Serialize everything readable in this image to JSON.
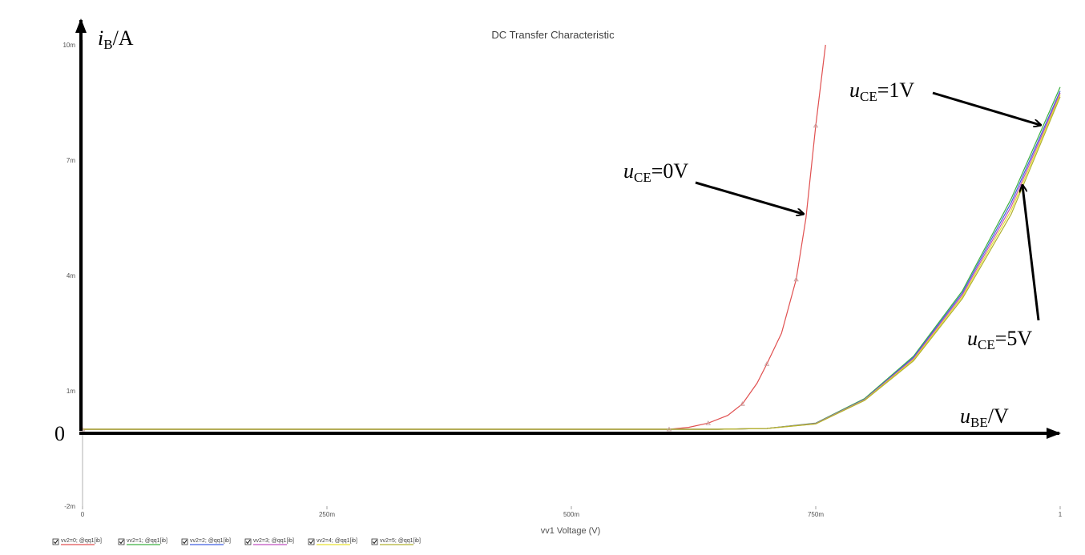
{
  "chart_data": {
    "type": "line",
    "title": "DC Transfer Characteristic",
    "xlabel": "vv1 Voltage (V)",
    "xlim": [
      0,
      1
    ],
    "ylim": [
      -0.002,
      0.01
    ],
    "x_ticks": [
      {
        "value": 0,
        "label": "0"
      },
      {
        "value": 0.25,
        "label": "250m"
      },
      {
        "value": 0.5,
        "label": "500m"
      },
      {
        "value": 0.75,
        "label": "750m"
      },
      {
        "value": 1,
        "label": "1"
      }
    ],
    "y_ticks": [
      {
        "value": 0.01,
        "label": "10m"
      },
      {
        "value": 0.007,
        "label": "7m"
      },
      {
        "value": 0.004,
        "label": "4m"
      },
      {
        "value": 0.001,
        "label": "1m"
      },
      {
        "value": -0.002,
        "label": "-2m"
      }
    ],
    "series": [
      {
        "name": "vv2=0; @qq1[ib]",
        "color": "#e05050",
        "x": [
          0,
          0.55,
          0.6,
          0.62,
          0.64,
          0.66,
          0.675,
          0.69,
          0.7,
          0.715,
          0.73,
          0.74,
          0.75,
          0.76
        ],
        "y": [
          0,
          0,
          0,
          5e-05,
          0.00016,
          0.00036,
          0.00066,
          0.0012,
          0.0017,
          0.0025,
          0.0039,
          0.0055,
          0.0079,
          0.01
        ]
      },
      {
        "name": "vv2=1; @qq1[ib]",
        "color": "#3cb040",
        "x": [
          0,
          0.65,
          0.7,
          0.75,
          0.8,
          0.85,
          0.9,
          0.95,
          1.0
        ],
        "y": [
          0,
          0,
          2e-05,
          0.00016,
          0.0008,
          0.0019,
          0.0036,
          0.006,
          0.0089
        ]
      },
      {
        "name": "vv2=2; @qq1[ib]",
        "color": "#4060e0",
        "x": [
          0,
          0.65,
          0.7,
          0.75,
          0.8,
          0.85,
          0.9,
          0.95,
          1.0
        ],
        "y": [
          0,
          0,
          2e-05,
          0.00015,
          0.00078,
          0.00187,
          0.00355,
          0.0059,
          0.0088
        ]
      },
      {
        "name": "vv2=3; @qq1[ib]",
        "color": "#c050c0",
        "x": [
          0,
          0.65,
          0.7,
          0.75,
          0.8,
          0.85,
          0.9,
          0.95,
          1.0
        ],
        "y": [
          0,
          0,
          2e-05,
          0.00015,
          0.00077,
          0.00184,
          0.0035,
          0.0058,
          0.00875
        ]
      },
      {
        "name": "vv2=4; @qq1[ib]",
        "color": "#e8e030",
        "x": [
          0,
          0.65,
          0.7,
          0.75,
          0.8,
          0.85,
          0.9,
          0.95,
          1.0
        ],
        "y": [
          0,
          0,
          2e-05,
          0.00014,
          0.00076,
          0.00181,
          0.00345,
          0.0057,
          0.0087
        ]
      },
      {
        "name": "vv2=5; @qq1[ib]",
        "color": "#b0b030",
        "x": [
          0,
          0.65,
          0.7,
          0.75,
          0.8,
          0.85,
          0.9,
          0.95,
          1.0
        ],
        "y": [
          0,
          0,
          2e-05,
          0.00014,
          0.00075,
          0.00178,
          0.0034,
          0.0056,
          0.00865
        ]
      }
    ],
    "annotations": {
      "y_axis": {
        "italic": "i",
        "sub": "B",
        "rest": "/A"
      },
      "x_axis": {
        "italic": "u",
        "sub": "BE",
        "rest": "/V"
      },
      "origin": "0",
      "labels": [
        {
          "italic": "u",
          "sub": "CE",
          "rest": "=0V"
        },
        {
          "italic": "u",
          "sub": "CE",
          "rest": "=1V"
        },
        {
          "italic": "u",
          "sub": "CE",
          "rest": "=5V"
        }
      ]
    }
  }
}
